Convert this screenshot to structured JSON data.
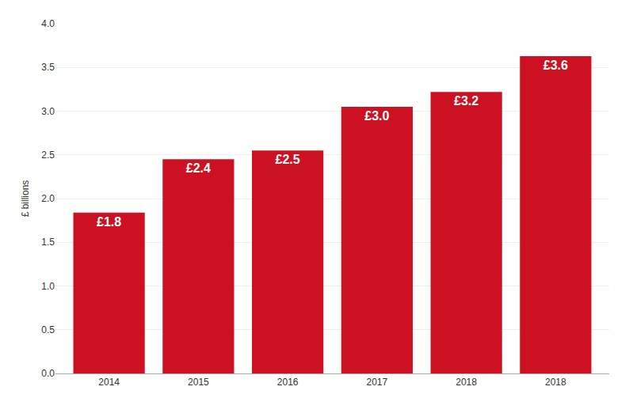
{
  "chart_data": {
    "type": "bar",
    "categories": [
      "2014",
      "2015",
      "2016",
      "2017",
      "2018",
      "2018"
    ],
    "values": [
      1.84,
      2.45,
      2.55,
      3.05,
      3.22,
      3.63
    ],
    "value_labels": [
      "£1.8",
      "£2.4",
      "£2.5",
      "£3.0",
      "£3.2",
      "£3.6"
    ],
    "data_labels": true,
    "color": "#cc1122",
    "ylabel": "£ billions",
    "ylim": [
      0,
      4.0
    ],
    "yticks": [
      {
        "value": 0,
        "label": "0.0"
      },
      0.5,
      {
        "value": 1,
        "label": "1.0"
      },
      1.5,
      {
        "value": 2,
        "label": "2.0"
      },
      2.5,
      {
        "value": 3,
        "label": "3.0"
      },
      3.5,
      {
        "value": 4,
        "label": "4.0"
      }
    ],
    "grid": true
  }
}
